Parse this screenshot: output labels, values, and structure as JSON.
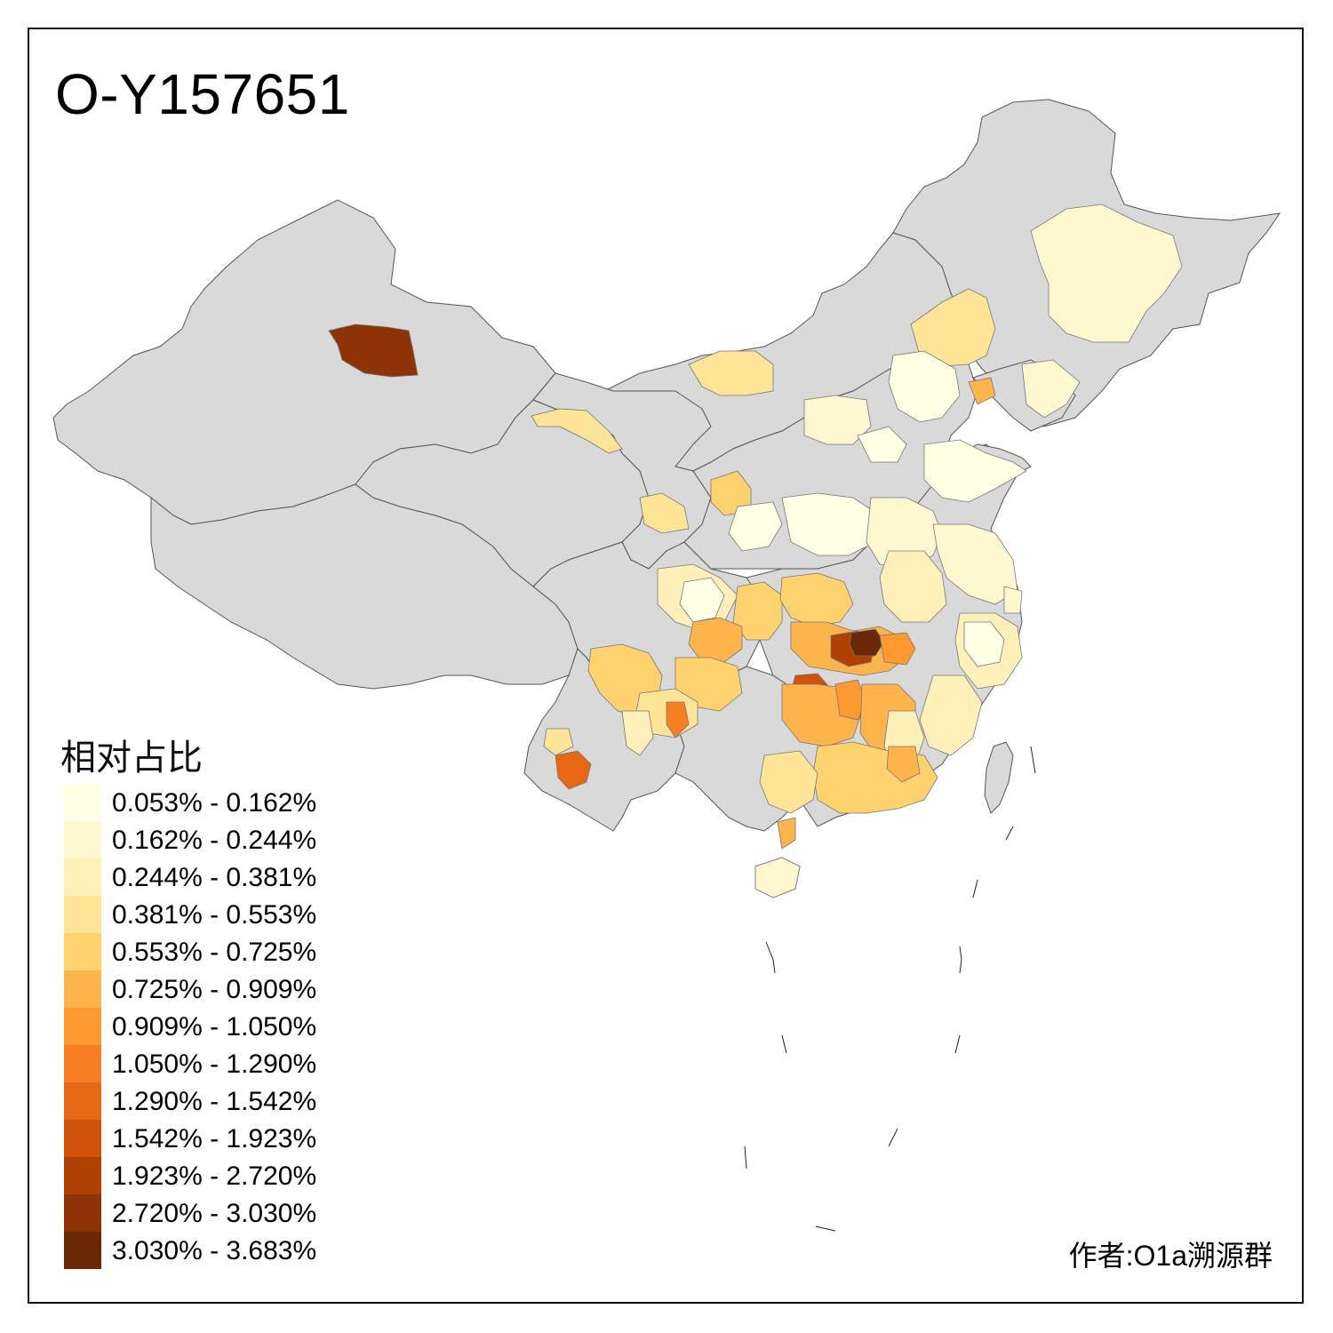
{
  "title": "O-Y157651",
  "legend": {
    "title": "相对占比",
    "items": [
      {
        "label": "0.053% - 0.162%",
        "color": "#FFFFE5"
      },
      {
        "label": "0.162% - 0.244%",
        "color": "#FFF7D0"
      },
      {
        "label": "0.244% - 0.381%",
        "color": "#FFEFB8"
      },
      {
        "label": "0.381% - 0.553%",
        "color": "#FEE497"
      },
      {
        "label": "0.553% - 0.725%",
        "color": "#FED26E"
      },
      {
        "label": "0.725% - 0.909%",
        "color": "#FEB44C"
      },
      {
        "label": "0.909% - 1.050%",
        "color": "#FE9830"
      },
      {
        "label": "1.050% - 1.290%",
        "color": "#F57F22"
      },
      {
        "label": "1.290% - 1.542%",
        "color": "#E66714"
      },
      {
        "label": "1.542% - 1.923%",
        "color": "#D0520A"
      },
      {
        "label": "1.923% - 2.720%",
        "color": "#B04105"
      },
      {
        "label": "2.720% - 3.030%",
        "color": "#8E3305"
      },
      {
        "label": "3.030% - 3.683%",
        "color": "#6B2806"
      }
    ]
  },
  "author": "作者:O1a溯源群",
  "colors": {
    "base_region": "#D9D9D9",
    "border": "#555555",
    "frame": "#111111"
  }
}
